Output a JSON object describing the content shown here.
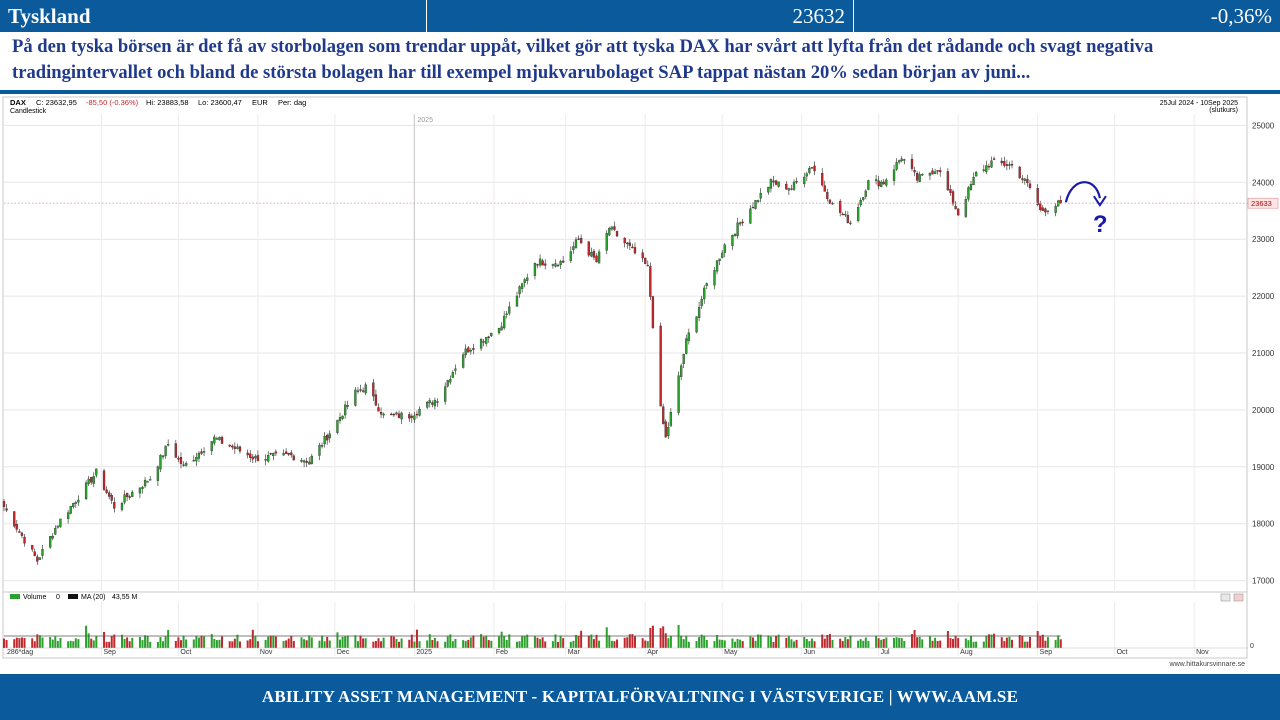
{
  "header": {
    "name": "Tyskland",
    "value": "23632",
    "change": "-0,36%"
  },
  "commentary": "På den tyska börsen är det få av storbolagen som trendar uppåt, vilket gör att tyska DAX har svårt att lyfta från det rådande och svagt negativa tradingintervallet och bland de största bolagen har till exempel mjukvarubolaget SAP tappat nästan 20% sedan början av juni...",
  "footer": "ABILITY ASSET MANAGEMENT -  KAPITALFÖRVALTNING I VÄSTSVERIGE   |   WWW.AAM.SE",
  "chart_info": {
    "symbol": "DAX",
    "close_label": "C: 23632,95",
    "change_label": "-85,50 (-0.36%)",
    "high_label": "Hi: 23883,58",
    "low_label": "Lo: 23600,47",
    "currency": "EUR",
    "period": "Per: dag",
    "style": "Candlestick",
    "date_range": "25Jul 2024 - 10Sep 2025",
    "range_note": "(slutkurs)",
    "year_marker": "2025",
    "last_price_label": "23633",
    "volume_label": "Volume",
    "volume_value": "0",
    "ma_label": "MA (20)",
    "ma_value": "43,55 M",
    "days_label": "286*dag",
    "volume_zero": "0",
    "question_mark": "?",
    "source": "www.hittakursvinnare.se"
  },
  "colors": {
    "up": "#2ca02c",
    "down": "#c0282d",
    "brand": "#0a5a9c",
    "accent": "#1a1aa8"
  },
  "chart_data": {
    "type": "candlestick",
    "title": "DAX",
    "ylim": [
      16800,
      25200
    ],
    "yticks": [
      17000,
      18000,
      19000,
      20000,
      21000,
      22000,
      23000,
      24000,
      25000
    ],
    "x_range": [
      "2024-07-25",
      "2025-09-10"
    ],
    "x_months": [
      "Sep",
      "Oct",
      "Nov",
      "Dec",
      "2025",
      "Feb",
      "Mar",
      "Apr",
      "May",
      "Jun",
      "Jul",
      "Aug",
      "Sep",
      "Oct",
      "Nov"
    ],
    "last_price": 23633,
    "close_waypoints": [
      [
        "2024-07-25",
        18300
      ],
      [
        "2024-08-07",
        17350
      ],
      [
        "2024-08-15",
        18000
      ],
      [
        "2024-08-30",
        18900
      ],
      [
        "2024-09-06",
        18300
      ],
      [
        "2024-09-20",
        18800
      ],
      [
        "2024-09-27",
        19400
      ],
      [
        "2024-10-03",
        19000
      ],
      [
        "2024-10-15",
        19500
      ],
      [
        "2024-10-31",
        19150
      ],
      [
        "2024-11-14",
        19200
      ],
      [
        "2024-11-21",
        19100
      ],
      [
        "2024-11-29",
        19600
      ],
      [
        "2024-12-09",
        20300
      ],
      [
        "2024-12-13",
        20400
      ],
      [
        "2024-12-20",
        19900
      ],
      [
        "2024-12-30",
        19900
      ],
      [
        "2025-01-10",
        20200
      ],
      [
        "2025-01-20",
        21000
      ],
      [
        "2025-02-03",
        21450
      ],
      [
        "2025-02-17",
        22600
      ],
      [
        "2025-02-28",
        22600
      ],
      [
        "2025-03-06",
        23000
      ],
      [
        "2025-03-13",
        22600
      ],
      [
        "2025-03-18",
        23200
      ],
      [
        "2025-03-27",
        22800
      ],
      [
        "2025-04-02",
        22500
      ],
      [
        "2025-04-07",
        20000
      ],
      [
        "2025-04-09",
        19500
      ],
      [
        "2025-04-17",
        21200
      ],
      [
        "2025-04-25",
        22200
      ],
      [
        "2025-05-02",
        22900
      ],
      [
        "2025-05-12",
        23550
      ],
      [
        "2025-05-20",
        24000
      ],
      [
        "2025-05-28",
        23900
      ],
      [
        "2025-06-05",
        24300
      ],
      [
        "2025-06-13",
        23600
      ],
      [
        "2025-06-20",
        23300
      ],
      [
        "2025-06-27",
        24000
      ],
      [
        "2025-07-03",
        24000
      ],
      [
        "2025-07-10",
        24450
      ],
      [
        "2025-07-16",
        24050
      ],
      [
        "2025-07-24",
        24250
      ],
      [
        "2025-08-01",
        23450
      ],
      [
        "2025-08-08",
        24150
      ],
      [
        "2025-08-14",
        24350
      ],
      [
        "2025-08-22",
        24300
      ],
      [
        "2025-08-29",
        23900
      ],
      [
        "2025-09-02",
        23500
      ],
      [
        "2025-09-10",
        23633
      ]
    ]
  }
}
